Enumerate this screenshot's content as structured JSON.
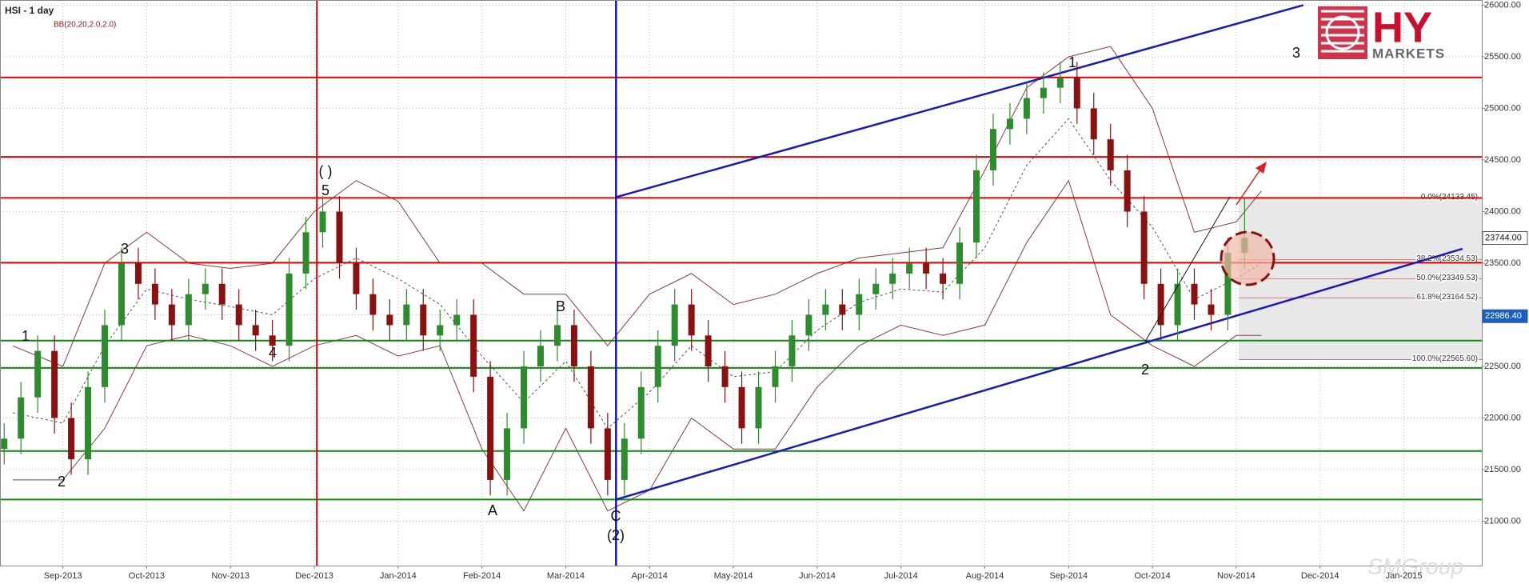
{
  "chart_data": {
    "type": "candlestick",
    "title": "HSI - 1 day",
    "indicator": "BB(20,20,2.0,2.0)",
    "logo": {
      "name": "HY",
      "sub": "MARKETS"
    },
    "watermark": "SMGroup",
    "xlim": [
      -0.75,
      16.93
    ],
    "ylim": [
      20570,
      26050
    ],
    "xticks": [
      {
        "value": 0,
        "label": "Sep-2013"
      },
      {
        "value": 1,
        "label": "Oct-2013"
      },
      {
        "value": 2,
        "label": "Nov-2013"
      },
      {
        "value": 3,
        "label": "Dec-2013"
      },
      {
        "value": 4,
        "label": "Jan-2014"
      },
      {
        "value": 5,
        "label": "Feb-2014"
      },
      {
        "value": 6,
        "label": "Mar-2014"
      },
      {
        "value": 7,
        "label": "Apr-2014"
      },
      {
        "value": 8,
        "label": "May-2014"
      },
      {
        "value": 9,
        "label": "Jun-2014"
      },
      {
        "value": 10,
        "label": "Jul-2014"
      },
      {
        "value": 11,
        "label": "Aug-2014"
      },
      {
        "value": 12,
        "label": "Sep-2014"
      },
      {
        "value": 13,
        "label": "Oct-2014"
      },
      {
        "value": 14,
        "label": "Nov-2014"
      },
      {
        "value": 15,
        "label": "Dec-2014"
      },
      {
        "value": 16,
        "label": "Jan-2015"
      }
    ],
    "yticks": [
      {
        "value": 21000,
        "label": "21000.00"
      },
      {
        "value": 21500,
        "label": "21500.00"
      },
      {
        "value": 22000,
        "label": "22000.00"
      },
      {
        "value": 22500,
        "label": "22500.00"
      },
      {
        "value": 23000,
        "label": "23000.00"
      },
      {
        "value": 23500,
        "label": "23500.00"
      },
      {
        "value": 24000,
        "label": "24000.00"
      },
      {
        "value": 24500,
        "label": "24500.00"
      },
      {
        "value": 25000,
        "label": "25000.00"
      },
      {
        "value": 25500,
        "label": "25500.00"
      },
      {
        "value": 26000,
        "label": "26000.00"
      }
    ],
    "grid": true,
    "up_color": "#2e8b2e",
    "down_color": "#8b1010",
    "x": [
      -0.7,
      -0.5,
      -0.3,
      -0.1,
      0.1,
      0.3,
      0.5,
      0.7,
      0.9,
      1.1,
      1.3,
      1.5,
      1.7,
      1.9,
      2.1,
      2.3,
      2.5,
      2.7,
      2.9,
      3.1,
      3.3,
      3.5,
      3.7,
      3.9,
      4.1,
      4.3,
      4.5,
      4.7,
      4.9,
      5.1,
      5.3,
      5.5,
      5.7,
      5.9,
      6.1,
      6.3,
      6.5,
      6.7,
      6.9,
      7.1,
      7.3,
      7.5,
      7.7,
      7.9,
      8.1,
      8.3,
      8.5,
      8.7,
      8.9,
      9.1,
      9.3,
      9.5,
      9.7,
      9.9,
      10.1,
      10.3,
      10.5,
      10.7,
      10.9,
      11.1,
      11.3,
      11.5,
      11.7,
      11.9,
      12.1,
      12.3,
      12.5,
      12.7,
      12.9,
      13.1,
      13.3,
      13.5,
      13.7,
      13.9,
      14.1
    ],
    "open": [
      21700,
      21800,
      22200,
      22650,
      22000,
      21600,
      22300,
      22900,
      23500,
      23300,
      23100,
      22900,
      23200,
      23300,
      23100,
      22900,
      22800,
      22700,
      23400,
      23800,
      24000,
      23500,
      23200,
      23000,
      22900,
      23100,
      22800,
      22900,
      23000,
      22400,
      21400,
      21900,
      22500,
      22700,
      22900,
      22500,
      21900,
      21400,
      21800,
      22300,
      22700,
      23100,
      22800,
      22500,
      22300,
      21900,
      22300,
      22500,
      22800,
      23000,
      23100,
      23000,
      23200,
      23300,
      23400,
      23500,
      23400,
      23300,
      23700,
      24400,
      24800,
      24900,
      25100,
      25200,
      25300,
      25000,
      24700,
      24400,
      24000,
      23300,
      22900,
      23300,
      23100,
      23000,
      23600
    ],
    "high": [
      21950,
      22350,
      22800,
      22800,
      22150,
      22450,
      23050,
      23650,
      23650,
      23450,
      23250,
      23350,
      23450,
      23450,
      23250,
      23050,
      22950,
      23550,
      23950,
      24150,
      24150,
      23650,
      23350,
      23150,
      23250,
      23250,
      23050,
      23150,
      23150,
      22550,
      22050,
      22650,
      22850,
      23050,
      23050,
      22650,
      22050,
      21950,
      22450,
      22850,
      23250,
      23250,
      22950,
      22650,
      22450,
      22450,
      22650,
      22950,
      23150,
      23250,
      23250,
      23350,
      23450,
      23550,
      23650,
      23650,
      23550,
      23850,
      24550,
      24950,
      25050,
      25250,
      25350,
      25450,
      25450,
      25150,
      24850,
      24550,
      24150,
      23450,
      23450,
      23450,
      23250,
      23750,
      24133
    ],
    "low": [
      21550,
      21650,
      22050,
      21850,
      21450,
      21450,
      22150,
      22750,
      23150,
      22950,
      22750,
      22750,
      23050,
      22950,
      22750,
      22650,
      22550,
      22550,
      23250,
      23650,
      23350,
      23050,
      22850,
      22750,
      22750,
      22650,
      22650,
      22750,
      22250,
      21250,
      21250,
      21750,
      22350,
      22550,
      22350,
      21750,
      21250,
      21250,
      21650,
      22150,
      22550,
      22650,
      22350,
      22150,
      21750,
      21750,
      22150,
      22350,
      22650,
      22850,
      22850,
      22850,
      23050,
      23150,
      23250,
      23250,
      23150,
      23150,
      23550,
      24250,
      24650,
      24750,
      24950,
      25050,
      24850,
      24550,
      24250,
      23850,
      23150,
      22750,
      22750,
      22950,
      22850,
      22850,
      23450
    ],
    "close": [
      21800,
      22200,
      22650,
      22000,
      21600,
      22300,
      22900,
      23500,
      23300,
      23100,
      22900,
      23200,
      23300,
      23100,
      22900,
      22800,
      22700,
      23400,
      23800,
      24000,
      23500,
      23200,
      23000,
      22900,
      23100,
      22800,
      22900,
      23000,
      22400,
      21400,
      21900,
      22500,
      22700,
      22900,
      22500,
      21900,
      21400,
      21800,
      22300,
      22700,
      23100,
      22800,
      22500,
      22300,
      21900,
      22300,
      22500,
      22800,
      23000,
      23100,
      23000,
      23200,
      23300,
      23400,
      23500,
      23400,
      23300,
      23700,
      24400,
      24800,
      24900,
      25100,
      25200,
      25300,
      25000,
      24700,
      24400,
      24000,
      23300,
      22900,
      23300,
      23100,
      23000,
      23600,
      23744
    ],
    "bands": {
      "x": [
        -0.6,
        0,
        0.5,
        1,
        1.5,
        2,
        2.5,
        3,
        3.5,
        4,
        4.5,
        5,
        5.5,
        6,
        6.5,
        7,
        7.5,
        8,
        8.5,
        9,
        9.5,
        10,
        10.5,
        11,
        11.5,
        12,
        12.5,
        13,
        13.5,
        14,
        14.3
      ],
      "upper": [
        22700,
        22500,
        23500,
        23800,
        23500,
        23450,
        23500,
        24000,
        24300,
        24100,
        23500,
        23500,
        23200,
        23200,
        22700,
        23200,
        23400,
        23100,
        23200,
        23400,
        23550,
        23600,
        23650,
        24400,
        25200,
        25500,
        25600,
        25000,
        23800,
        23900,
        24200
      ],
      "middle": [
        22050,
        21950,
        22700,
        23250,
        23150,
        23080,
        23000,
        23350,
        23550,
        23350,
        23100,
        22600,
        22150,
        22550,
        21900,
        22250,
        22700,
        22400,
        22450,
        22850,
        23120,
        23250,
        23220,
        23650,
        24450,
        24900,
        24300,
        23850,
        23150,
        23350,
        23500
      ],
      "lower": [
        21400,
        21400,
        21900,
        22700,
        22800,
        22700,
        22500,
        22700,
        22800,
        22600,
        22700,
        21700,
        21100,
        21900,
        21100,
        21300,
        22000,
        21700,
        21700,
        22300,
        22700,
        22900,
        22800,
        22900,
        23700,
        24300,
        23000,
        22700,
        22500,
        22800,
        22800
      ],
      "color": "#8b3a3a"
    },
    "red_levels": [
      25300,
      24530,
      24133,
      23505
    ],
    "green_levels": [
      22750,
      22485,
      21680,
      21210
    ],
    "red_vertical": 3.03,
    "blue_vertical": 6.6,
    "channel": [
      {
        "x": [
          6.6,
          14.8
        ],
        "y": [
          24140,
          26000
        ]
      },
      {
        "x": [
          6.6,
          16.7
        ],
        "y": [
          21210,
          23640
        ]
      }
    ],
    "fib_start": 14.03,
    "fib": [
      {
        "value": 24133.45,
        "label": "0.0%(24133.45)"
      },
      {
        "value": 23534.53,
        "label": "38.2%(23534.53)"
      },
      {
        "value": 23349.53,
        "label": "50.0%(23349.53)"
      },
      {
        "value": 23164.52,
        "label": "61.8%(23164.52)"
      },
      {
        "value": 22565.6,
        "label": "100.0%(22565.60)"
      }
    ],
    "price_tags": [
      {
        "value": 23744,
        "label": "23744.00"
      },
      {
        "value": 22986.4,
        "label": "22986.40"
      }
    ],
    "wave_labels": [
      "1",
      "2",
      "3",
      "4",
      "( )",
      "5",
      "A",
      "B",
      "C",
      "(2)",
      "1",
      "2",
      "3"
    ]
  }
}
